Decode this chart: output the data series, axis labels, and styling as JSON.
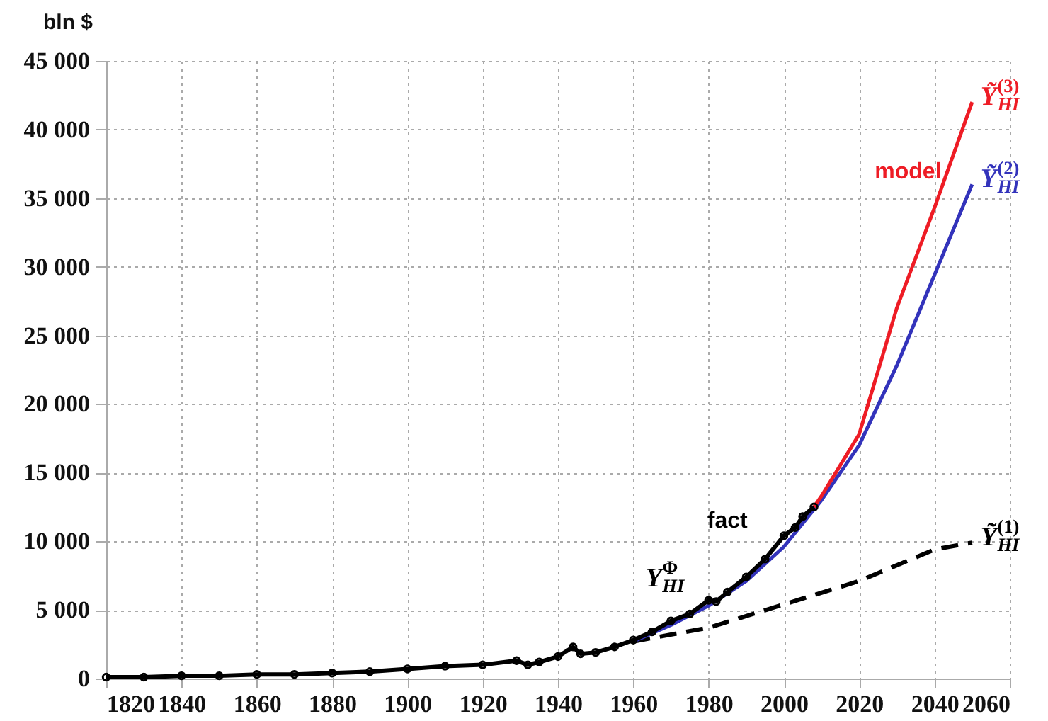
{
  "chart_data": {
    "type": "line",
    "ylabel": "bln $",
    "xlim": [
      1820,
      2060
    ],
    "xticks": [
      1820,
      1840,
      1860,
      1880,
      1900,
      1920,
      1940,
      1960,
      1980,
      2000,
      2020,
      2040,
      2060
    ],
    "ylim": [
      0,
      45000
    ],
    "yticks": [
      {
        "value": 0,
        "label": "0"
      },
      {
        "value": 5000,
        "label": "5 000"
      },
      {
        "value": 10000,
        "label": "10 000"
      },
      {
        "value": 15000,
        "label": "15 000"
      },
      {
        "value": 20000,
        "label": "20 000"
      },
      {
        "value": 25000,
        "label": "25 000"
      },
      {
        "value": 30000,
        "label": "30 000"
      },
      {
        "value": 35000,
        "label": "35 000"
      },
      {
        "value": 40000,
        "label": "40 000"
      },
      {
        "value": 45000,
        "label": "45 000"
      }
    ],
    "grid": true,
    "series": [
      {
        "name": "Ỹ$^{(1)}$$_{HI}$",
        "color": "#000000",
        "line_style": "dashed",
        "x": [
          1960,
          1980,
          2000,
          2020,
          2040,
          2050
        ],
        "values": [
          2700,
          3700,
          5400,
          7100,
          9400,
          9900
        ]
      },
      {
        "name": "Ỹ$^{(2)}$$_{HI}$",
        "color": "#3333bb",
        "x": [
          1960,
          1970,
          1980,
          1990,
          2000,
          2010,
          2020,
          2030,
          2040,
          2050
        ],
        "values": [
          2700,
          3900,
          5300,
          7100,
          9600,
          13000,
          17000,
          22800,
          29400,
          36000
        ]
      },
      {
        "name": "Ỹ$^{(3)}$$_{HI}$",
        "color": "#ee1c25",
        "x": [
          2008,
          2010,
          2020,
          2030,
          2040,
          2050
        ],
        "values": [
          12500,
          13300,
          17800,
          27000,
          34300,
          42000
        ]
      },
      {
        "name": "Y$^{Φ}$$_{HI}$",
        "color": "#000000",
        "marker": "circle",
        "x": [
          1820,
          1830,
          1840,
          1850,
          1860,
          1870,
          1880,
          1890,
          1900,
          1910,
          1920,
          1929,
          1932,
          1935,
          1940,
          1944,
          1946,
          1950,
          1955,
          1960,
          1965,
          1970,
          1975,
          1980,
          1982,
          1985,
          1990,
          1995,
          2000,
          2003,
          2005,
          2008
        ],
        "values": [
          100,
          100,
          200,
          200,
          300,
          300,
          400,
          500,
          700,
          900,
          1000,
          1300,
          1000,
          1200,
          1600,
          2300,
          1800,
          1900,
          2300,
          2800,
          3400,
          4200,
          4700,
          5700,
          5600,
          6300,
          7400,
          8700,
          10400,
          11000,
          11800,
          12500
        ]
      }
    ],
    "annotations": [
      "model",
      "fact"
    ]
  }
}
